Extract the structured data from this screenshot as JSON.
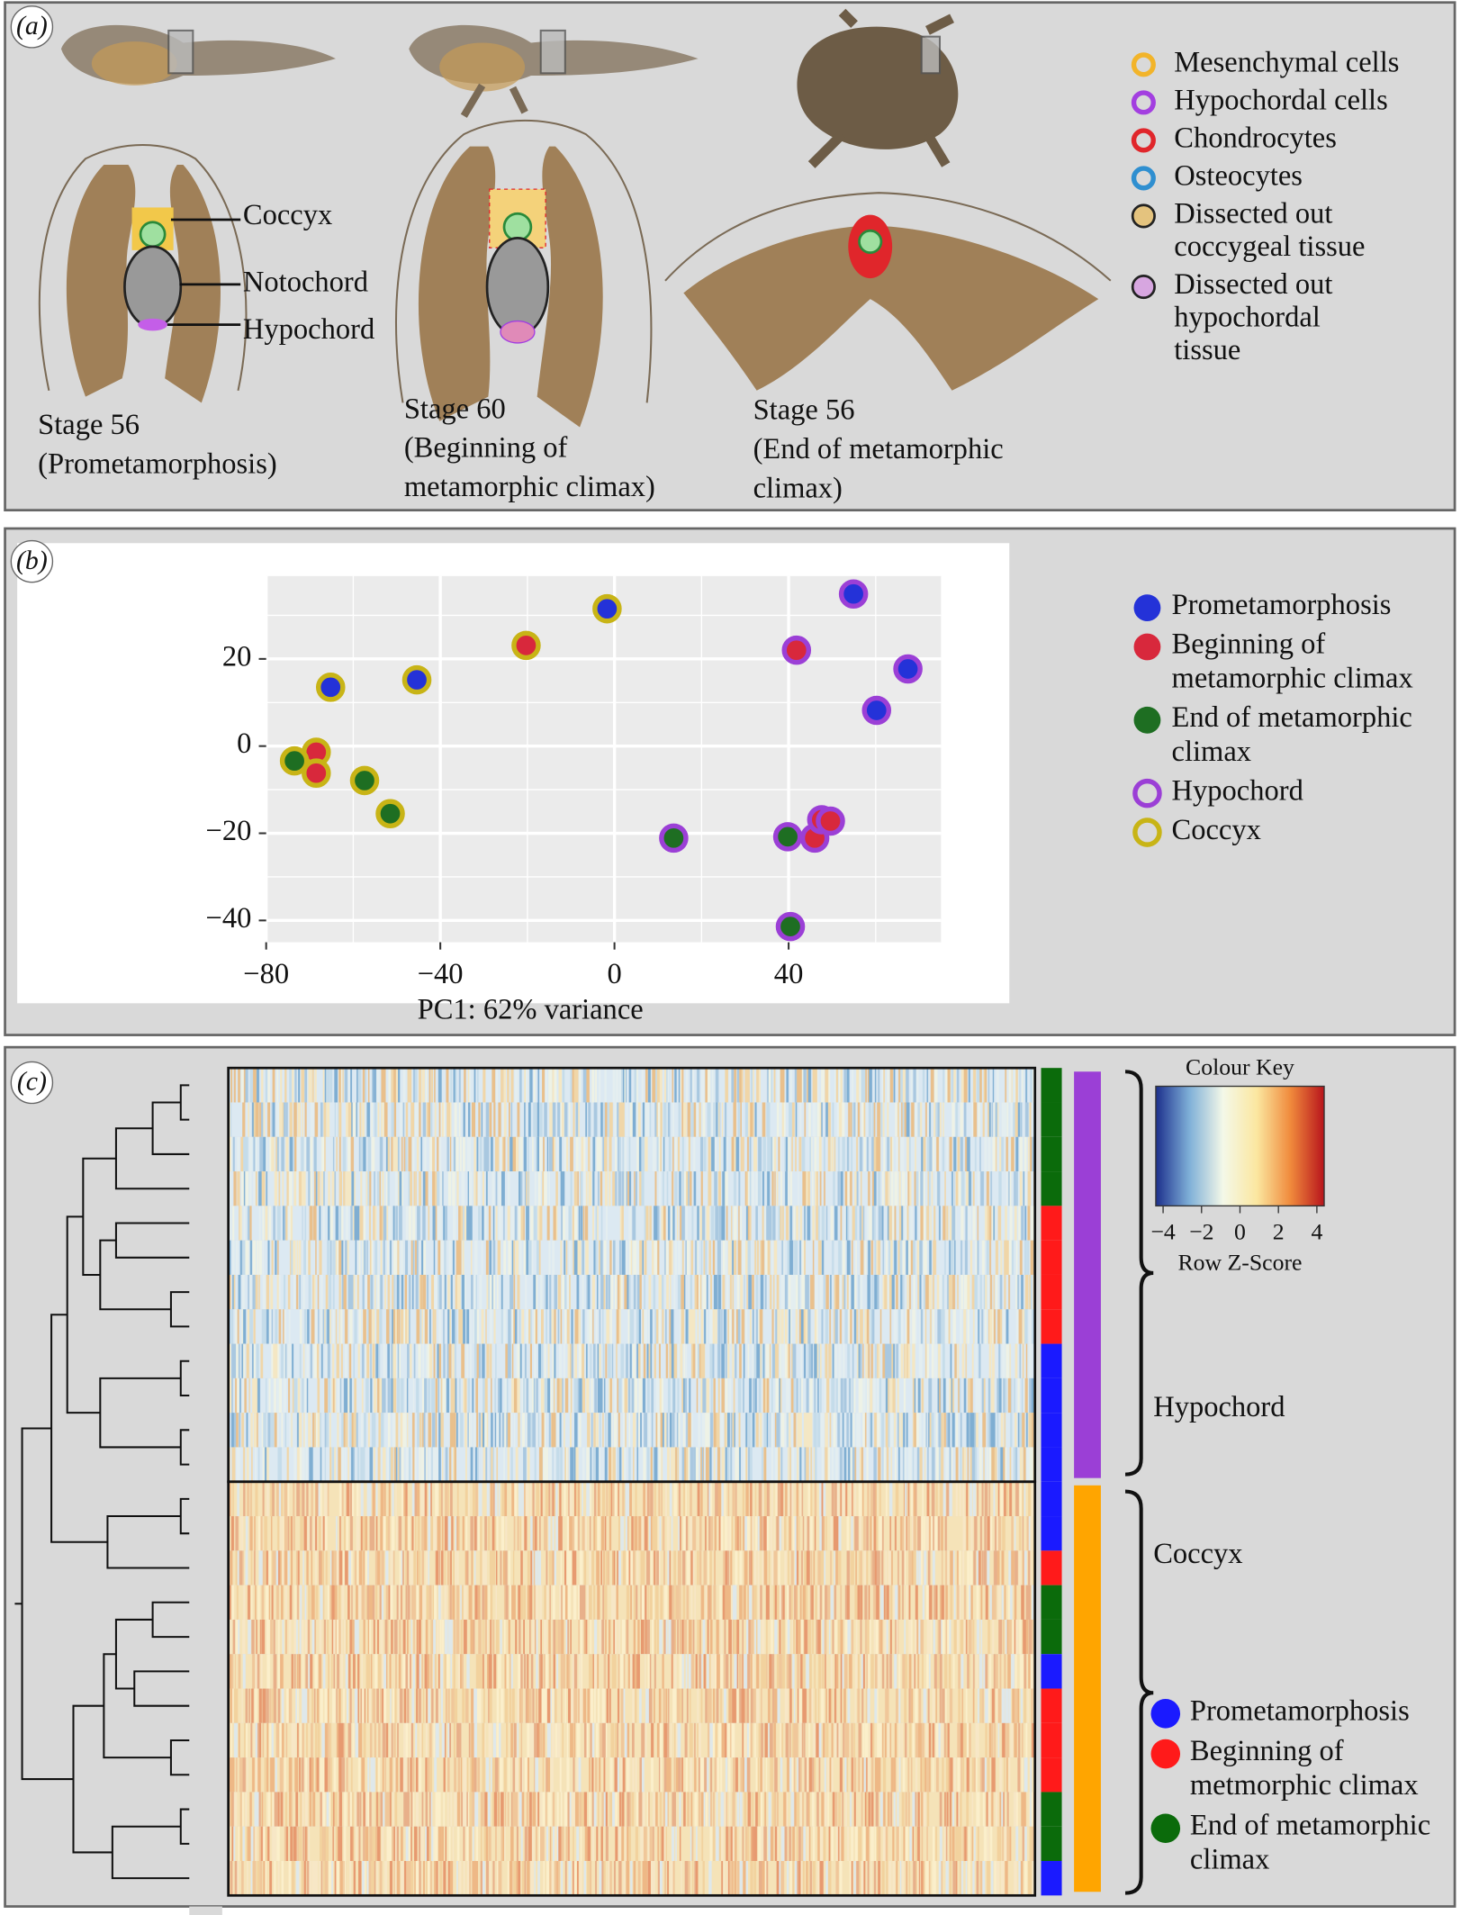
{
  "panel_a": {
    "tag": "(a)",
    "structures": [
      "Coccyx",
      "Notochord",
      "Hypochord"
    ],
    "stages": [
      [
        "Stage 56",
        "(Prometamorphosis)"
      ],
      [
        "Stage 60",
        "(Beginning of",
        "metamorphic climax)"
      ],
      [
        "Stage 56",
        "(End of metamorphic",
        "climax)"
      ]
    ],
    "legend": [
      {
        "lines": [
          "Mesenchymal cells"
        ],
        "color": "#f2b42a"
      },
      {
        "lines": [
          "Hypochordal cells"
        ],
        "color": "#a33fe0"
      },
      {
        "lines": [
          "Chondrocytes"
        ],
        "color": "#e0262b"
      },
      {
        "lines": [
          "Osteocytes"
        ],
        "color": "#2f8fd0"
      },
      {
        "lines": [
          "Dissected out",
          "coccygeal tissue"
        ],
        "color": "#e4c37e"
      },
      {
        "lines": [
          "Dissected out",
          "hypochordal",
          "tissue"
        ],
        "color": "#d7a6e0"
      }
    ]
  },
  "chart_data": [
    {
      "panel": "(b)",
      "type": "scatter",
      "xlabel": "PC1: 62% variance",
      "xlim": [
        -80,
        75
      ],
      "ylim": [
        -45,
        39
      ],
      "xticks": [
        {
          "value": -80,
          "label": "−80"
        },
        {
          "value": -40,
          "label": "−40"
        },
        0,
        40
      ],
      "yticks": [
        {
          "value": -40,
          "label": "−40"
        },
        {
          "value": -20,
          "label": "−20"
        },
        0,
        20
      ],
      "minor_xticks": [
        -60,
        -20,
        20,
        60
      ],
      "minor_yticks": [
        -30,
        -10,
        10,
        30
      ],
      "grid": true,
      "series": [
        {
          "name": "Prometamorphosis",
          "color": "#2432d8",
          "x": [
            -1.7,
            54.9,
            67.4,
            60.2,
            -45.4,
            -65.2
          ],
          "values": [
            31.5,
            34.9,
            17.7,
            8.2,
            15.2,
            13.5
          ],
          "ring": [
            1,
            0,
            0,
            0,
            1,
            1
          ]
        },
        {
          "name": "Beginning of metamorphic climax",
          "color": "#d8283c",
          "x": [
            41.8,
            -20.3,
            -68.5,
            -68.5,
            46.0,
            47.6,
            49.6
          ],
          "values": [
            22,
            23.1,
            -1.4,
            -6.2,
            -21.1,
            -16.9,
            -17.2
          ],
          "ring": [
            0,
            1,
            1,
            1,
            0,
            0,
            0
          ]
        },
        {
          "name": "End of metamorphic climax",
          "color": "#1e6e22",
          "x": [
            -73.5,
            -57.4,
            -51.5,
            13.6,
            39.8,
            40.4
          ],
          "values": [
            -3.4,
            -7.9,
            -15.5,
            -21.1,
            -20.8,
            -41.4
          ],
          "ring": [
            1,
            1,
            1,
            0,
            0,
            0
          ]
        }
      ],
      "rings": [
        {
          "name": "Hypochord",
          "color": "#9b3fd6"
        },
        {
          "name": "Coccyx",
          "color": "#c8b416"
        }
      ]
    },
    {
      "panel": "(c)",
      "type": "heatmap",
      "colour_key": "Colour Key",
      "key_label": "Row Z-Score",
      "key_lim": [
        -4,
        4
      ],
      "key_ticks": [
        {
          "value": -4,
          "label": "−4"
        },
        {
          "value": -2,
          "label": "−2"
        },
        0,
        2,
        4
      ],
      "key_colors": [
        "#1c2f8c",
        "#7fb0d8",
        "#f4f8e8",
        "#fbe7a0",
        "#f08a3c",
        "#b8141c"
      ],
      "groups": [
        {
          "name": "Hypochord",
          "color": "#9b3fd6"
        },
        {
          "name": "Coccyx",
          "color": "#ffa500"
        }
      ],
      "series": [
        {
          "name": "Prometamorphosis",
          "color": "#1a1aff"
        },
        {
          "name": "Beginning of metmorphic climax",
          "color": "#ff1a1a"
        },
        {
          "name": "End of metamorphic climax",
          "color": "#0b6b0b"
        }
      ],
      "row_stage": [
        2,
        2,
        2,
        2,
        1,
        1,
        1,
        1,
        0,
        0,
        0,
        0,
        0,
        0,
        1,
        2,
        2,
        0,
        1,
        1,
        1,
        2,
        2,
        0
      ],
      "row_group": [
        0,
        0,
        0,
        0,
        0,
        0,
        0,
        0,
        0,
        0,
        0,
        0,
        1,
        1,
        1,
        1,
        1,
        1,
        1,
        1,
        1,
        1,
        1,
        1
      ]
    }
  ]
}
